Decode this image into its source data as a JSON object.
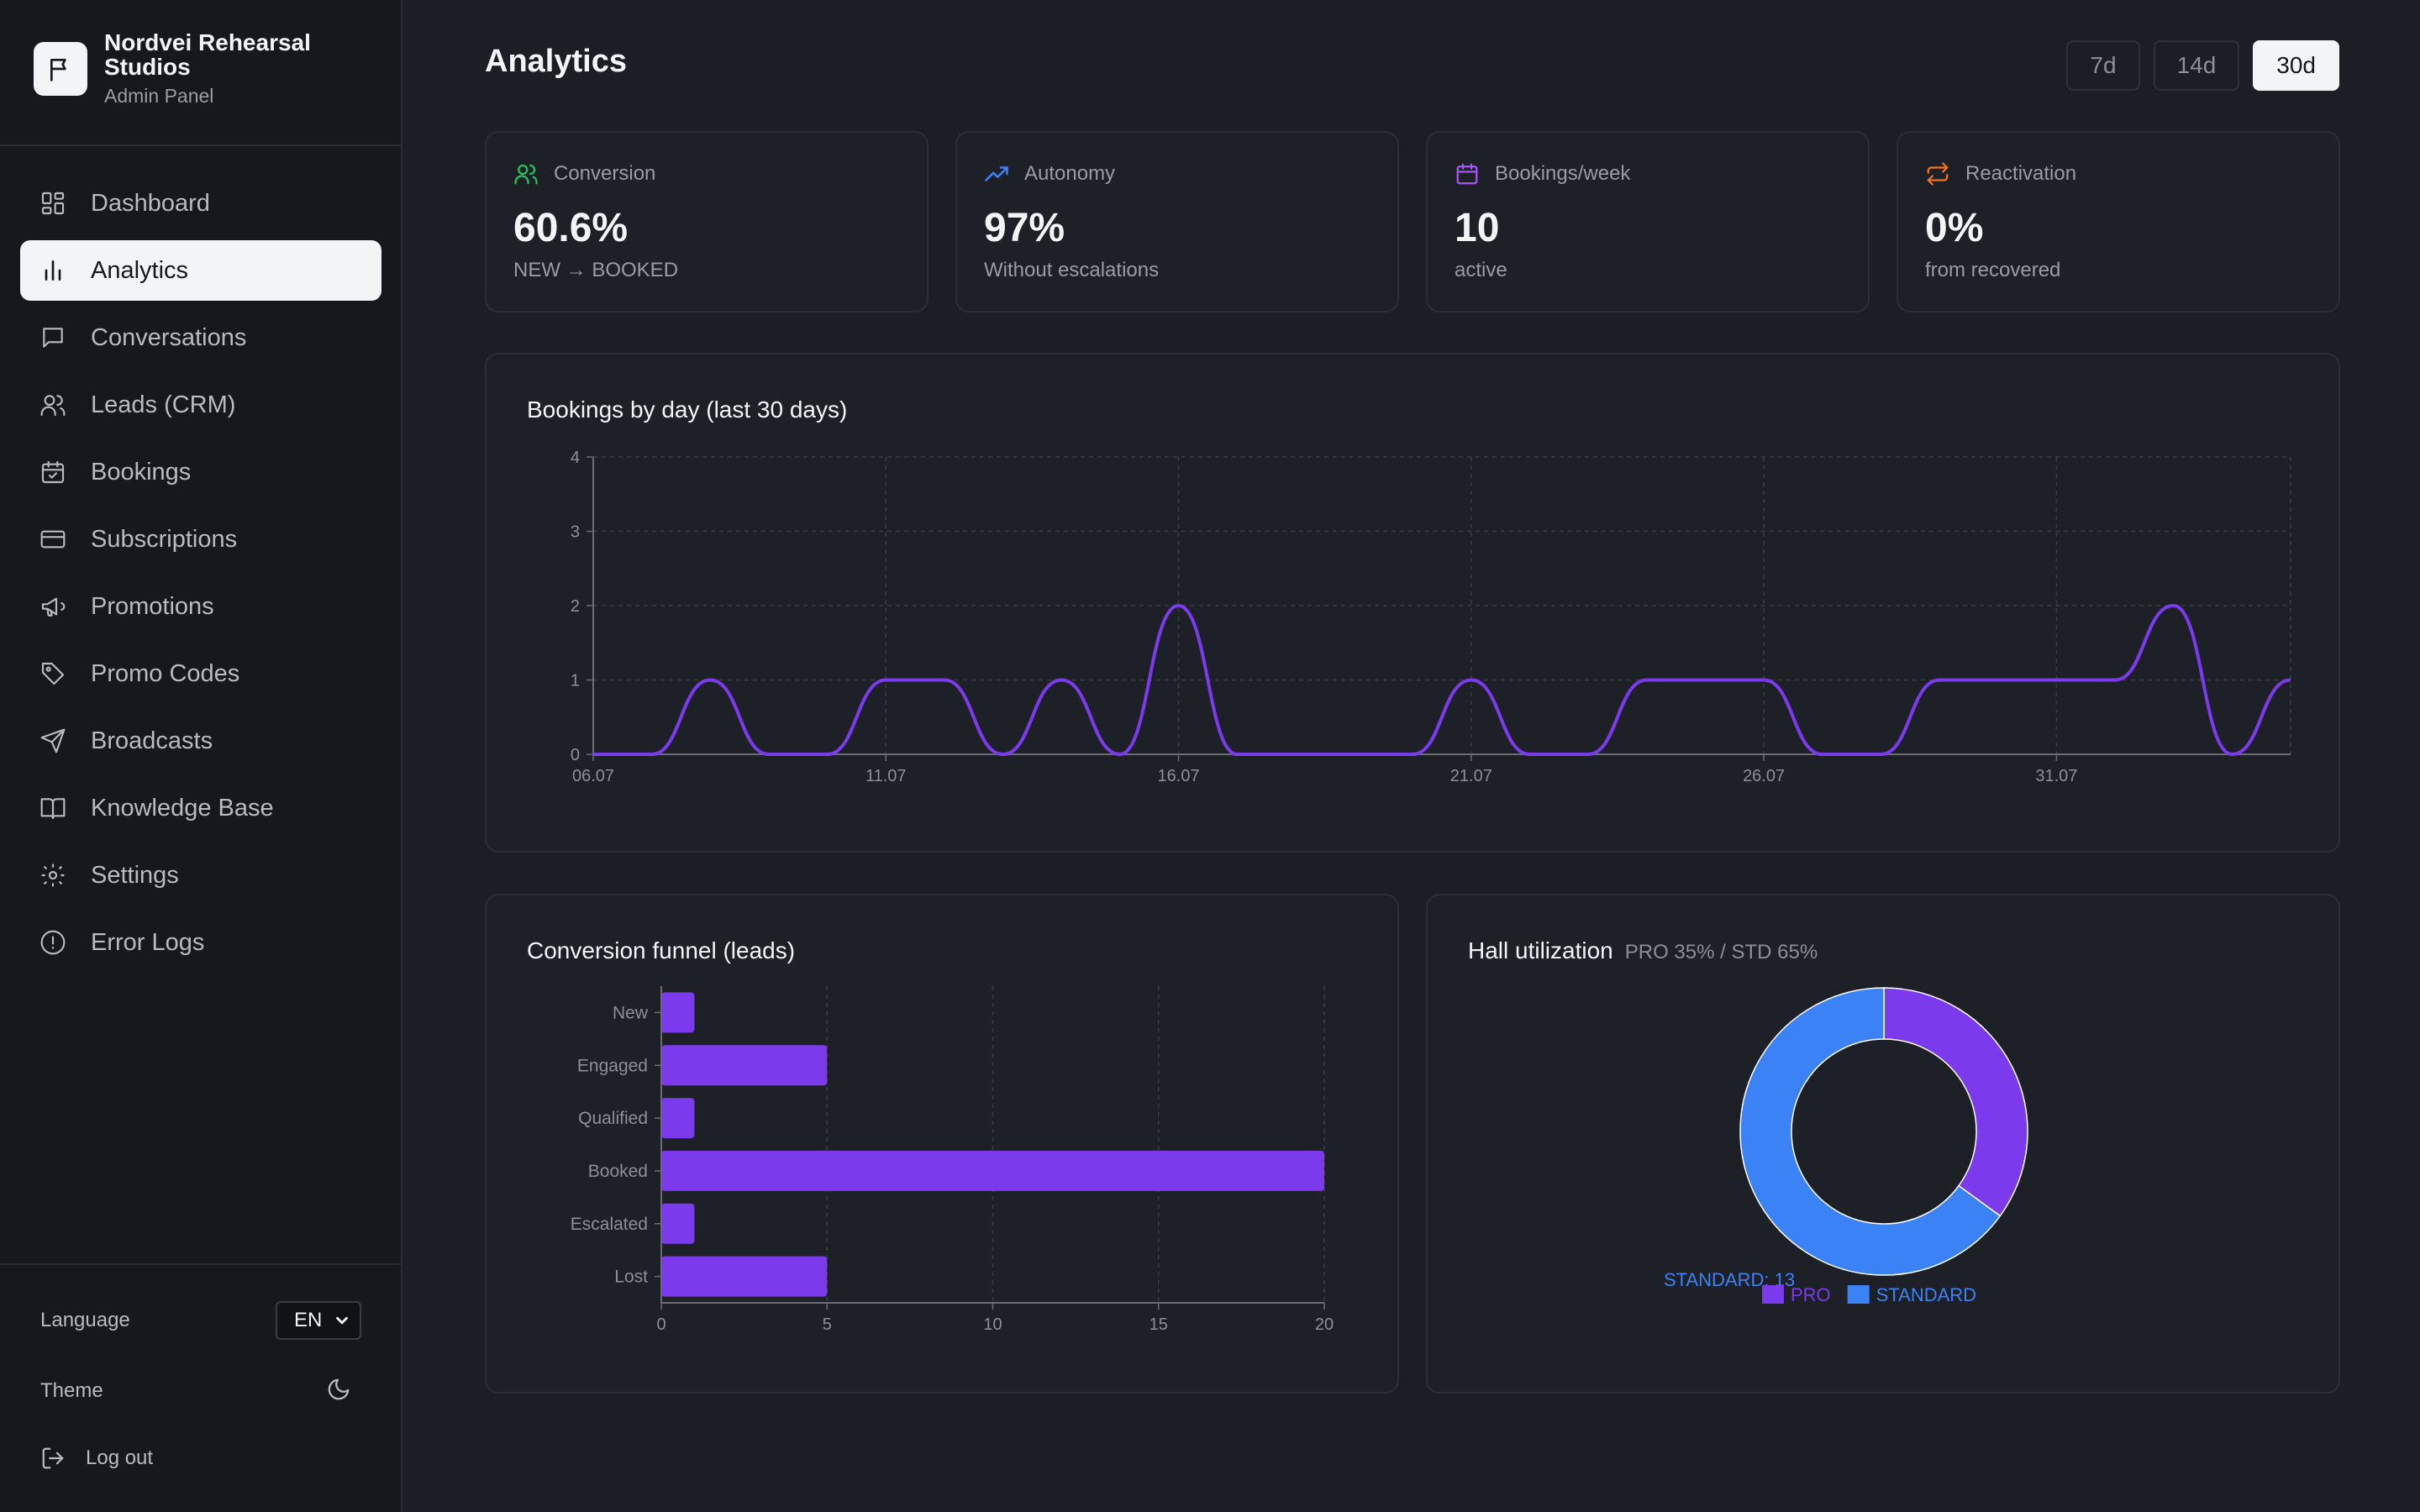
{
  "sidebar": {
    "brand_name": "Nordvei Rehearsal Studios",
    "brand_sub": "Admin Panel",
    "items": [
      {
        "label": "Dashboard",
        "icon": "dashboard-icon"
      },
      {
        "label": "Analytics",
        "icon": "bar-chart-icon",
        "active": true
      },
      {
        "label": "Conversations",
        "icon": "chat-icon"
      },
      {
        "label": "Leads (CRM)",
        "icon": "users-icon"
      },
      {
        "label": "Bookings",
        "icon": "calendar-check-icon"
      },
      {
        "label": "Subscriptions",
        "icon": "credit-card-icon"
      },
      {
        "label": "Promotions",
        "icon": "megaphone-icon"
      },
      {
        "label": "Promo Codes",
        "icon": "tag-icon"
      },
      {
        "label": "Broadcasts",
        "icon": "send-icon"
      },
      {
        "label": "Knowledge Base",
        "icon": "book-icon"
      },
      {
        "label": "Settings",
        "icon": "gear-icon"
      },
      {
        "label": "Error Logs",
        "icon": "alert-circle-icon"
      }
    ],
    "language_label": "Language",
    "language_value": "EN",
    "theme_label": "Theme",
    "logout_label": "Log out"
  },
  "header": {
    "title": "Analytics",
    "ranges": [
      "7d",
      "14d",
      "30d"
    ],
    "active_range": "30d"
  },
  "kpis": [
    {
      "label": "Conversion",
      "value": "60.6%",
      "sub": "NEW → BOOKED",
      "icon": "users-icon",
      "color": "#22c55e"
    },
    {
      "label": "Autonomy",
      "value": "97%",
      "sub": "Without escalations",
      "icon": "trending-up-icon",
      "color": "#3b82f6"
    },
    {
      "label": "Bookings/week",
      "value": "10",
      "sub": "active",
      "icon": "calendar-icon",
      "color": "#a855f7"
    },
    {
      "label": "Reactivation",
      "value": "0%",
      "sub": "from recovered",
      "icon": "repeat-icon",
      "color": "#f97316"
    }
  ],
  "bookings_chart": {
    "title": "Bookings by day (last 30 days)"
  },
  "funnel_chart": {
    "title": "Conversion funnel (leads)"
  },
  "hall_chart": {
    "title": "Hall utilization",
    "subtitle": "PRO 35% / STD 65%",
    "slice_label": "STANDARD: 13"
  },
  "chart_data": [
    {
      "type": "line",
      "title": "Bookings by day (last 30 days)",
      "x": [
        "06.07",
        "07.07",
        "08.07",
        "09.07",
        "10.07",
        "11.07",
        "12.07",
        "13.07",
        "14.07",
        "15.07",
        "16.07",
        "17.07",
        "18.07",
        "19.07",
        "20.07",
        "21.07",
        "22.07",
        "23.07",
        "24.07",
        "25.07",
        "26.07",
        "27.07",
        "28.07",
        "29.07",
        "30.07",
        "31.07",
        "01.08",
        "02.08",
        "03.08",
        "04.08"
      ],
      "x_ticks": [
        "06.07",
        "11.07",
        "16.07",
        "21.07",
        "26.07",
        "31.07"
      ],
      "values": [
        0,
        0,
        1,
        0,
        0,
        1,
        1,
        0,
        1,
        0,
        2,
        0,
        0,
        0,
        0,
        1,
        0,
        0,
        1,
        1,
        1,
        0,
        0,
        1,
        1,
        1,
        1,
        2,
        0,
        1
      ],
      "ylim": [
        0,
        4
      ],
      "yticks": [
        0,
        1,
        2,
        3,
        4
      ],
      "grid": true,
      "color": "#7c3aed"
    },
    {
      "type": "bar",
      "orientation": "horizontal",
      "title": "Conversion funnel (leads)",
      "categories": [
        "New",
        "Engaged",
        "Qualified",
        "Booked",
        "Escalated",
        "Lost"
      ],
      "values": [
        1,
        5,
        1,
        20,
        1,
        5
      ],
      "xlim": [
        0,
        20
      ],
      "xticks": [
        0,
        5,
        10,
        15,
        20
      ],
      "grid": true,
      "color": "#7c3aed"
    },
    {
      "type": "pie",
      "title": "Hall utilization",
      "subtitle": "PRO 35% / STD 65%",
      "categories": [
        "PRO",
        "STANDARD"
      ],
      "values": [
        7,
        13
      ],
      "colors": [
        "#7c3aed",
        "#3b82f6"
      ],
      "legend": "bottom"
    }
  ]
}
